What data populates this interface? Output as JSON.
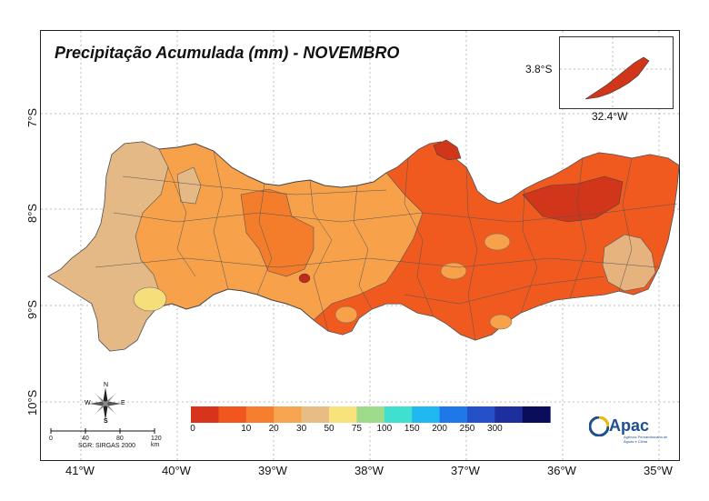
{
  "title": "Precipitação Acumulada (mm) - NOVEMBRO",
  "lat_labels": [
    "7°S",
    "8°S",
    "9°S",
    "10°S"
  ],
  "lon_labels": [
    "41°W",
    "40°W",
    "39°W",
    "38°W",
    "37°W",
    "36°W",
    "35°W"
  ],
  "inset": {
    "lat_label": "3.8°S",
    "lon_label": "32.4°W"
  },
  "legend": {
    "colors": [
      "#d8341c",
      "#f0561e",
      "#f57f2e",
      "#f7a551",
      "#e8bd85",
      "#f7e27b",
      "#9edc8c",
      "#40e0d0",
      "#1fb8f0",
      "#1e78e8",
      "#2450c8",
      "#1c2f9c",
      "#0a0e5a"
    ],
    "ticks": [
      "0",
      "10",
      "20",
      "30",
      "50",
      "75",
      "100",
      "150",
      "200",
      "250",
      "300"
    ]
  },
  "compass": {
    "n": "N",
    "s": "S",
    "e": "E",
    "w": "W"
  },
  "scale_bar": {
    "ticks": [
      "0",
      "40",
      "80",
      "120 km"
    ]
  },
  "srs": "SGR: SIRGAS 2000",
  "logo": {
    "name": "Apac",
    "subtitle": "Agência Pernambucana de Águas e Clima"
  }
}
